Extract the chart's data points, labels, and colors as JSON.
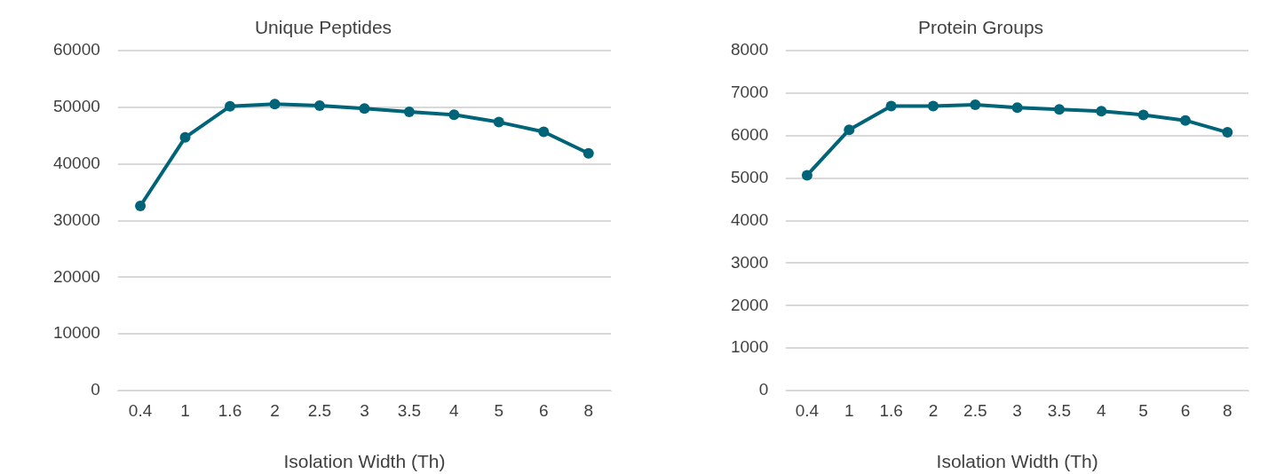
{
  "chart_data": [
    {
      "type": "line",
      "title": "Unique Peptides",
      "xlabel": "Isolation Width (Th)",
      "categories": [
        "0.4",
        "1",
        "1.6",
        "2",
        "2.5",
        "3",
        "3.5",
        "4",
        "5",
        "6",
        "8"
      ],
      "series": [
        {
          "color": "#006479",
          "values": [
            32600,
            44700,
            50200,
            50600,
            50300,
            49800,
            49200,
            48700,
            47400,
            45700,
            41900
          ]
        }
      ],
      "ylim": [
        0,
        60000
      ],
      "yticks": [
        0,
        10000,
        20000,
        30000,
        40000,
        50000,
        60000
      ],
      "grid": "y",
      "legend": false,
      "marker": "circle",
      "line_style": "solid"
    },
    {
      "type": "line",
      "title": "Protein Groups",
      "xlabel": "Isolation Width (Th)",
      "categories": [
        "0.4",
        "1",
        "1.6",
        "2",
        "2.5",
        "3",
        "3.5",
        "4",
        "5",
        "6",
        "8"
      ],
      "series": [
        {
          "color": "#006479",
          "values": [
            5070,
            6140,
            6700,
            6700,
            6730,
            6660,
            6620,
            6580,
            6490,
            6360,
            6080
          ]
        }
      ],
      "ylim": [
        0,
        8000
      ],
      "yticks": [
        0,
        1000,
        2000,
        3000,
        4000,
        5000,
        6000,
        7000,
        8000
      ],
      "grid": "y",
      "legend": false,
      "marker": "circle",
      "line_style": "solid"
    }
  ]
}
